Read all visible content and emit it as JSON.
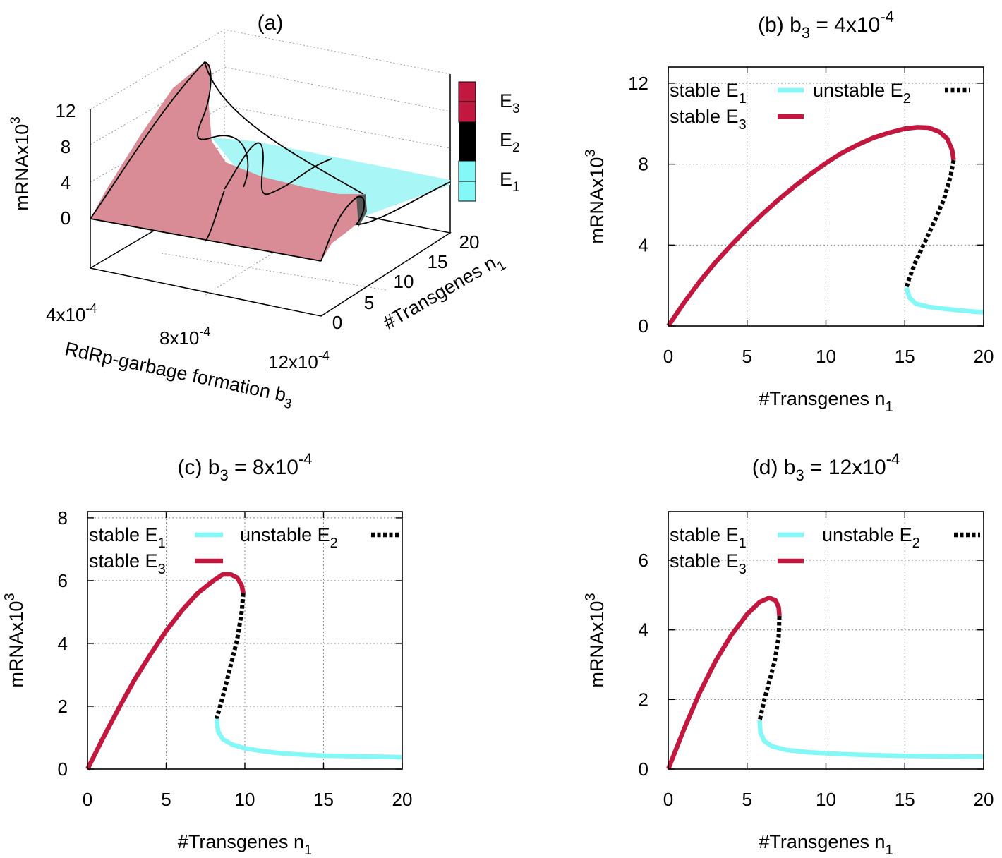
{
  "colors": {
    "E1": "#84f7f7",
    "E2": "#000000",
    "E3": "#c2183f",
    "surfaceE3": "#d98c96",
    "surfaceE1": "#a8f6f6"
  },
  "chart_data": [
    {
      "id": "a",
      "type": "surface3d",
      "title": "(a)",
      "zlabel": "mRNAx10",
      "zlabel_sup": "3",
      "ylabel": "#Transgenes n",
      "ylabel_sub": "1",
      "xlabel": "RdRp-garbage formation b",
      "xlabel_sub": "3",
      "zticks": [
        "0",
        "4",
        "8",
        "12"
      ],
      "yticks": [
        "0",
        "5",
        "10",
        "15",
        "20"
      ],
      "xticks": [
        {
          "base": "4x10",
          "exp": "-4"
        },
        {
          "base": "8x10",
          "exp": "-4"
        },
        {
          "base": "12x10",
          "exp": "-4"
        }
      ],
      "colorbar": [
        {
          "name": "E",
          "sub": "3"
        },
        {
          "name": "E",
          "sub": "2"
        },
        {
          "name": "E",
          "sub": "1"
        }
      ]
    },
    {
      "id": "b",
      "type": "line",
      "title_prefix": "(b) b",
      "title_sub": "3",
      "title_mid": " = 4x10",
      "title_sup": "-4",
      "xlabel": "#Transgenes n",
      "xlabel_sub": "1",
      "ylabel": "mRNAx10",
      "ylabel_sup": "3",
      "xlim": [
        0,
        20
      ],
      "ylim": [
        0,
        12.8
      ],
      "xticks": [
        0,
        5,
        10,
        15,
        20
      ],
      "yticks": [
        0,
        4,
        8,
        12
      ],
      "legend": {
        "layout": "two-column",
        "items": [
          {
            "label": "stable E",
            "sub": "1",
            "series": "E1"
          },
          {
            "label": "unstable E",
            "sub": "2",
            "series": "E2"
          },
          {
            "label": "stable E",
            "sub": "3",
            "series": "E3"
          }
        ]
      },
      "series": [
        {
          "name": "stable E3",
          "key": "E3",
          "style": "solid",
          "x": [
            0,
            1,
            2,
            3,
            4,
            5,
            6,
            7,
            8,
            9,
            10,
            11,
            12,
            13,
            14,
            15,
            15.8,
            16.5,
            17.2,
            17.7,
            18.0,
            18.1
          ],
          "y": [
            0,
            1.15,
            2.2,
            3.15,
            4.0,
            4.8,
            5.55,
            6.25,
            6.9,
            7.5,
            8.05,
            8.55,
            8.95,
            9.3,
            9.55,
            9.75,
            9.82,
            9.8,
            9.6,
            9.25,
            8.7,
            8.2
          ]
        },
        {
          "name": "unstable E2",
          "key": "E2",
          "style": "dashed",
          "x": [
            18.1,
            17.9,
            17.5,
            16.9,
            16.3,
            15.7,
            15.3,
            15.1
          ],
          "y": [
            8.2,
            7.4,
            6.3,
            5.2,
            4.2,
            3.2,
            2.4,
            1.9
          ]
        },
        {
          "name": "stable E1",
          "key": "E1",
          "style": "solid",
          "x": [
            15.1,
            15.3,
            15.7,
            16.5,
            17.5,
            18.5,
            19.5,
            20
          ],
          "y": [
            1.9,
            1.4,
            1.1,
            0.95,
            0.85,
            0.77,
            0.7,
            0.68
          ]
        }
      ]
    },
    {
      "id": "c",
      "type": "line",
      "title_prefix": "(c) b",
      "title_sub": "3",
      "title_mid": " = 8x10",
      "title_sup": "-4",
      "xlabel": "#Transgenes n",
      "xlabel_sub": "1",
      "ylabel": "mRNAx10",
      "ylabel_sup": "3",
      "xlim": [
        0,
        20
      ],
      "ylim": [
        0,
        8.2
      ],
      "xticks": [
        0,
        5,
        10,
        15,
        20
      ],
      "yticks": [
        0,
        2,
        4,
        6,
        8
      ],
      "legend": {
        "layout": "two-column",
        "items": [
          {
            "label": "stable E",
            "sub": "1",
            "series": "E1"
          },
          {
            "label": "unstable E",
            "sub": "2",
            "series": "E2"
          },
          {
            "label": "stable E",
            "sub": "3",
            "series": "E3"
          }
        ]
      },
      "series": [
        {
          "name": "stable E3",
          "key": "E3",
          "style": "solid",
          "x": [
            0,
            1,
            2,
            3,
            4,
            5,
            6,
            7,
            8,
            8.6,
            9.1,
            9.5,
            9.8,
            9.9
          ],
          "y": [
            0,
            1.0,
            1.95,
            2.85,
            3.65,
            4.4,
            5.05,
            5.6,
            6.0,
            6.2,
            6.2,
            6.1,
            5.85,
            5.6
          ]
        },
        {
          "name": "unstable E2",
          "key": "E2",
          "style": "dashed",
          "x": [
            9.9,
            9.8,
            9.5,
            9.1,
            8.7,
            8.4,
            8.2
          ],
          "y": [
            5.6,
            5.0,
            4.1,
            3.3,
            2.5,
            1.95,
            1.6
          ]
        },
        {
          "name": "stable E1",
          "key": "E1",
          "style": "solid",
          "x": [
            8.2,
            8.3,
            8.6,
            9.2,
            10,
            11,
            12,
            13,
            14,
            15,
            16,
            17,
            18,
            19,
            20
          ],
          "y": [
            1.6,
            1.2,
            0.95,
            0.78,
            0.66,
            0.58,
            0.52,
            0.48,
            0.45,
            0.43,
            0.42,
            0.41,
            0.4,
            0.39,
            0.38
          ]
        }
      ]
    },
    {
      "id": "d",
      "type": "line",
      "title_prefix": "(d) b",
      "title_sub": "3",
      "title_mid": " = 12x10",
      "title_sup": "-4",
      "xlabel": "#Transgenes n",
      "xlabel_sub": "1",
      "ylabel": "mRNAx10",
      "ylabel_sup": "3",
      "xlim": [
        0,
        20
      ],
      "ylim": [
        0,
        7.4
      ],
      "xticks": [
        0,
        5,
        10,
        15,
        20
      ],
      "yticks": [
        0,
        2,
        4,
        6
      ],
      "legend": {
        "layout": "two-column",
        "items": [
          {
            "label": "stable E",
            "sub": "1",
            "series": "E1"
          },
          {
            "label": "unstable E",
            "sub": "2",
            "series": "E2"
          },
          {
            "label": "stable E",
            "sub": "3",
            "series": "E3"
          }
        ]
      },
      "series": [
        {
          "name": "stable E3",
          "key": "E3",
          "style": "solid",
          "x": [
            0,
            1,
            2,
            3,
            4,
            5,
            5.8,
            6.4,
            6.8,
            7.0,
            7.05
          ],
          "y": [
            0,
            1.15,
            2.2,
            3.1,
            3.85,
            4.45,
            4.8,
            4.92,
            4.85,
            4.65,
            4.4
          ]
        },
        {
          "name": "unstable E2",
          "key": "E2",
          "style": "dashed",
          "x": [
            7.05,
            7.0,
            6.75,
            6.4,
            6.1,
            5.9,
            5.8
          ],
          "y": [
            4.4,
            3.8,
            3.1,
            2.5,
            2.0,
            1.6,
            1.4
          ]
        },
        {
          "name": "stable E1",
          "key": "E1",
          "style": "solid",
          "x": [
            5.8,
            5.85,
            6.1,
            6.6,
            7.5,
            9,
            11,
            13,
            15,
            17,
            20
          ],
          "y": [
            1.4,
            1.05,
            0.8,
            0.65,
            0.55,
            0.48,
            0.43,
            0.4,
            0.38,
            0.37,
            0.36
          ]
        }
      ]
    }
  ]
}
